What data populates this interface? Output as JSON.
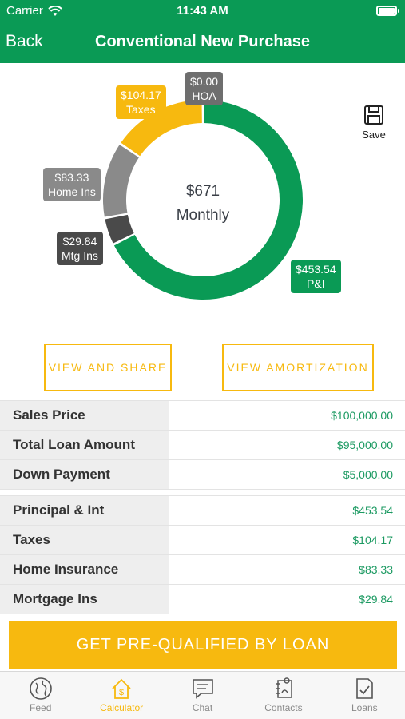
{
  "status_bar": {
    "carrier": "Carrier",
    "time": "11:43 AM"
  },
  "nav": {
    "back_label": "Back",
    "title": "Conventional New Purchase"
  },
  "chart_data": {
    "type": "pie",
    "style": "donut",
    "center_amount": "$671",
    "center_label": "Monthly",
    "slices": [
      {
        "name": "P&I",
        "value": 453.54,
        "label": "$453.54",
        "color": "#0a9a55"
      },
      {
        "name": "Mtg Ins",
        "value": 29.84,
        "label": "$29.84",
        "color": "#4a4a4a"
      },
      {
        "name": "Home Ins",
        "value": 83.33,
        "label": "$83.33",
        "color": "#8a8a8a"
      },
      {
        "name": "Taxes",
        "value": 104.17,
        "label": "$104.17",
        "color": "#f7b90f"
      },
      {
        "name": "HOA",
        "value": 0.0,
        "label": "$0.00",
        "color": "#6e6e6e"
      }
    ]
  },
  "save": {
    "label": "Save"
  },
  "actions": {
    "view_share": "VIEW AND SHARE",
    "view_amortization": "VIEW AMORTIZATION"
  },
  "loan_rows": [
    {
      "key": "Sales Price",
      "value": "$100,000.00"
    },
    {
      "key": "Total Loan Amount",
      "value": "$95,000.00"
    },
    {
      "key": "Down Payment",
      "value": "$5,000.00"
    }
  ],
  "payment_rows": [
    {
      "key": "Principal & Int",
      "value": "$453.54"
    },
    {
      "key": "Taxes",
      "value": "$104.17"
    },
    {
      "key": "Home Insurance",
      "value": "$83.33"
    },
    {
      "key": "Mortgage Ins",
      "value": "$29.84"
    }
  ],
  "cta": {
    "label": "GET PRE-QUALIFIED BY LOAN"
  },
  "tabs": [
    {
      "label": "Feed",
      "icon": "globe-icon"
    },
    {
      "label": "Calculator",
      "icon": "house-dollar-icon",
      "active": true
    },
    {
      "label": "Chat",
      "icon": "chat-bubble-icon"
    },
    {
      "label": "Contacts",
      "icon": "contacts-icon"
    },
    {
      "label": "Loans",
      "icon": "document-check-icon"
    }
  ]
}
